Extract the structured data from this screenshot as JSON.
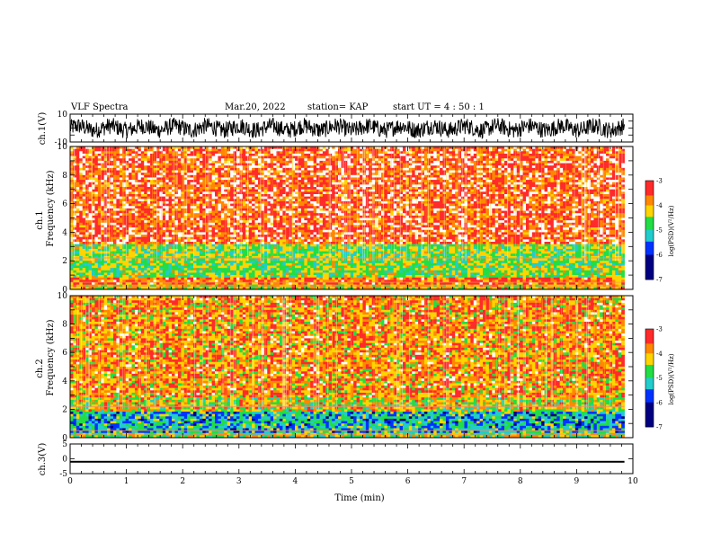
{
  "header": {
    "title": "VLF Spectra",
    "date": "Mar.20, 2022",
    "station": "station= KAP",
    "start_ut": "start  UT =   4 : 50 : 1"
  },
  "colors": {
    "spectrogram_high": "#ff2a2a",
    "spectrogram_mid": "#ffd400",
    "spectrogram_low": "#22dd44",
    "spectrogram_floor": "#22cccc",
    "trace": "#000000"
  },
  "chart_data": [
    {
      "type": "line",
      "name_label": "ch.1(V)",
      "xlabel": "",
      "ylabel": "ch.1(V)",
      "ylim": [
        -10,
        10
      ],
      "yticks": [
        "10",
        "-10"
      ],
      "x_range_min": [
        0,
        9.85
      ],
      "description_of_signal": "noisy broadband waveform oscillating roughly between -8 and 8 V"
    },
    {
      "type": "heatmap",
      "ylabel_top": "ch.1",
      "ylabel_bottom": "Frequency  (kHz)",
      "ylim": [
        0,
        10
      ],
      "yticks": [
        "0",
        "2",
        "4",
        "6",
        "8",
        "10"
      ],
      "x_range_min": [
        0,
        9.85
      ],
      "bands": [
        {
          "f_khz": [
            0,
            0.4
          ],
          "level": -4.2
        },
        {
          "f_khz": [
            0.4,
            0.8
          ],
          "level": -3.6
        },
        {
          "f_khz": [
            0.8,
            3.2
          ],
          "level": -4.6
        },
        {
          "f_khz": [
            3.2,
            10
          ],
          "level": -3.4
        }
      ],
      "colorbar": {
        "label": "log(PSD)(V²/Hz)",
        "ticks": [
          "-3",
          "-4",
          "-5",
          "-6",
          "-7"
        ],
        "range": [
          -7,
          -3
        ]
      }
    },
    {
      "type": "heatmap",
      "ylabel_top": "ch.2",
      "ylabel_bottom": "Frequency  (kHz)",
      "ylim": [
        0,
        10
      ],
      "yticks": [
        "0",
        "2",
        "4",
        "6",
        "8",
        "10"
      ],
      "x_range_min": [
        0,
        9.85
      ],
      "bands": [
        {
          "f_khz": [
            0,
            0.3
          ],
          "level": -4.5
        },
        {
          "f_khz": [
            0.3,
            1.8
          ],
          "level": -5.2
        },
        {
          "f_khz": [
            1.8,
            2.8
          ],
          "level": -4.3
        },
        {
          "f_khz": [
            2.8,
            10
          ],
          "level": -3.8
        }
      ],
      "colorbar": {
        "label": "log(PSD)(V²/Hz)",
        "ticks": [
          "-3",
          "-4",
          "-5",
          "-6",
          "-7"
        ],
        "range": [
          -7,
          -3
        ]
      }
    },
    {
      "type": "line",
      "name_label": "ch.3(V)",
      "ylabel": "ch.3(V)",
      "ylim": [
        -5,
        5
      ],
      "yticks": [
        "5",
        "0",
        "-5"
      ],
      "x_range_min": [
        0,
        9.85
      ],
      "level_v": [
        -1.3,
        -0.7
      ],
      "xlabel": "Time  (min)",
      "xticks": [
        "0",
        "1",
        "2",
        "3",
        "4",
        "5",
        "6",
        "7",
        "8",
        "9",
        "10"
      ],
      "xlim": [
        0,
        10
      ]
    }
  ]
}
